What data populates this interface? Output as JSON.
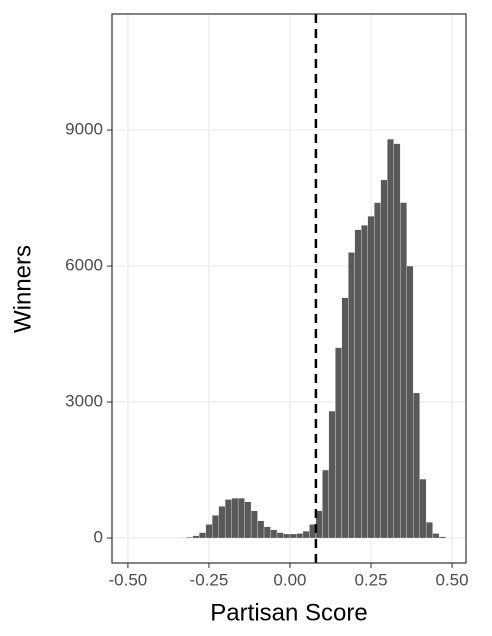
{
  "chart_data": {
    "type": "histogram",
    "x_label": "Partisan Score",
    "y_label": "Winners",
    "bins": [
      -0.34,
      -0.32,
      -0.3,
      -0.28,
      -0.26,
      -0.24,
      -0.22,
      -0.2,
      -0.18,
      -0.16,
      -0.14,
      -0.12,
      -0.1,
      -0.08,
      -0.06,
      -0.04,
      -0.02,
      0.0,
      0.02,
      0.04,
      0.06,
      0.08,
      0.1,
      0.12,
      0.14,
      0.16,
      0.18,
      0.2,
      0.22,
      0.24,
      0.26,
      0.28,
      0.3,
      0.32,
      0.34,
      0.36,
      0.38,
      0.4,
      0.42,
      0.44,
      0.46,
      0.48
    ],
    "values": [
      10,
      20,
      50,
      120,
      300,
      500,
      700,
      850,
      880,
      880,
      800,
      600,
      380,
      250,
      180,
      120,
      90,
      90,
      100,
      150,
      300,
      600,
      1500,
      2800,
      4200,
      5300,
      6300,
      6800,
      6900,
      7100,
      7400,
      7900,
      8800,
      8700,
      7400,
      6000,
      3200,
      1300,
      350,
      100,
      30
    ],
    "color": "#595959",
    "vline": 0.08,
    "xlim": [
      -0.549,
      0.543
    ],
    "ylim": [
      -551,
      11560
    ],
    "xticks": [
      {
        "value": -0.5,
        "label": "-0.50"
      },
      {
        "value": -0.25,
        "label": "-0.25"
      },
      {
        "value": 0,
        "label": "0.00"
      },
      {
        "value": 0.25,
        "label": "0.25"
      },
      {
        "value": 0.5,
        "label": "0.50"
      }
    ],
    "yticks": [
      0,
      3000,
      6000,
      9000
    ],
    "grid": true
  }
}
